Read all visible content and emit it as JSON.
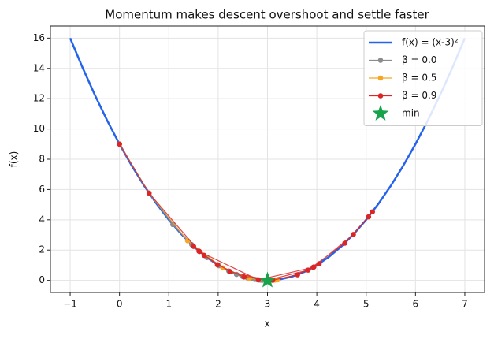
{
  "chart_data": {
    "type": "line",
    "title": "Momentum makes descent overshoot and settle faster",
    "xlabel": "x",
    "ylabel": "f(x)",
    "xlim": [
      -1.4,
      7.4
    ],
    "ylim": [
      -0.8,
      16.8
    ],
    "xticks": [
      {
        "value": -1,
        "label": "−1"
      },
      0,
      1,
      2,
      3,
      4,
      5,
      6,
      7
    ],
    "yticks": [
      0,
      2,
      4,
      6,
      8,
      10,
      12,
      14,
      16
    ],
    "grid": true,
    "legend": "upper right",
    "series": [
      {
        "name": "f(x) = (x-3)²",
        "color": "#2563eb",
        "x": [
          -1,
          -0.75,
          -0.5,
          -0.25,
          0,
          0.25,
          0.5,
          0.75,
          1,
          1.25,
          1.5,
          1.75,
          2,
          2.25,
          2.5,
          2.75,
          3,
          3.25,
          3.5,
          3.75,
          4,
          4.25,
          4.5,
          4.75,
          5,
          5.25,
          5.5,
          5.75,
          6,
          6.25,
          6.5,
          6.75,
          7
        ],
        "values": [
          16,
          14.0625,
          12.25,
          10.5625,
          9,
          7.5625,
          6.25,
          5.0625,
          4,
          3.0625,
          2.25,
          1.5625,
          1,
          0.5625,
          0.25,
          0.0625,
          0,
          0.0625,
          0.25,
          0.5625,
          1,
          1.5625,
          2.25,
          3.0625,
          4,
          5.0625,
          6.25,
          7.5625,
          9,
          10.5625,
          12.25,
          14.0625,
          16
        ]
      },
      {
        "name": "β = 0.0",
        "color": "#8c8c8c",
        "marker": "o",
        "x": [
          0,
          0.6,
          1.08,
          1.464,
          1.771,
          2.017,
          2.214,
          2.371,
          2.497,
          2.597,
          2.678,
          2.742,
          2.794,
          2.835,
          2.868,
          2.894
        ],
        "values": [
          9,
          5.76,
          3.686,
          2.359,
          1.51,
          0.966,
          0.618,
          0.396,
          0.253,
          0.162,
          0.104,
          0.066,
          0.043,
          0.027,
          0.017,
          0.011
        ]
      },
      {
        "name": "β = 0.5",
        "color": "#f5a623",
        "marker": "o",
        "x": [
          0,
          0.6,
          1.38,
          2.094,
          2.632,
          2.975,
          3.151,
          3.209,
          3.196,
          3.151,
          3.098,
          3.052,
          3.018
        ],
        "values": [
          9,
          5.76,
          2.624,
          0.821,
          0.135,
          0.001,
          0.023,
          0.044,
          0.039,
          0.023,
          0.01,
          0.003,
          0.0
        ]
      },
      {
        "name": "β = 0.9",
        "color": "#dc2626",
        "marker": "o",
        "x": [
          0,
          0.6,
          1.62,
          2.814,
          3.926,
          4.741,
          5.127,
          5.049,
          4.568,
          3.823,
          2.987,
          2.237,
          1.715,
          1.502,
          1.61,
          1.985,
          2.526,
          3.107,
          3.609,
          3.939,
          4.048
        ],
        "values": [
          9,
          5.76,
          1.904,
          0.035,
          0.857,
          3.032,
          4.524,
          4.197,
          2.46,
          0.677,
          0.0,
          0.582,
          1.651,
          2.243,
          1.931,
          1.03,
          0.225,
          0.011,
          0.371,
          0.881,
          1.098
        ]
      },
      {
        "name": "min",
        "color": "#16a34a",
        "marker": "star",
        "linestyle": "none",
        "x": [
          3
        ],
        "values": [
          0
        ]
      }
    ]
  }
}
